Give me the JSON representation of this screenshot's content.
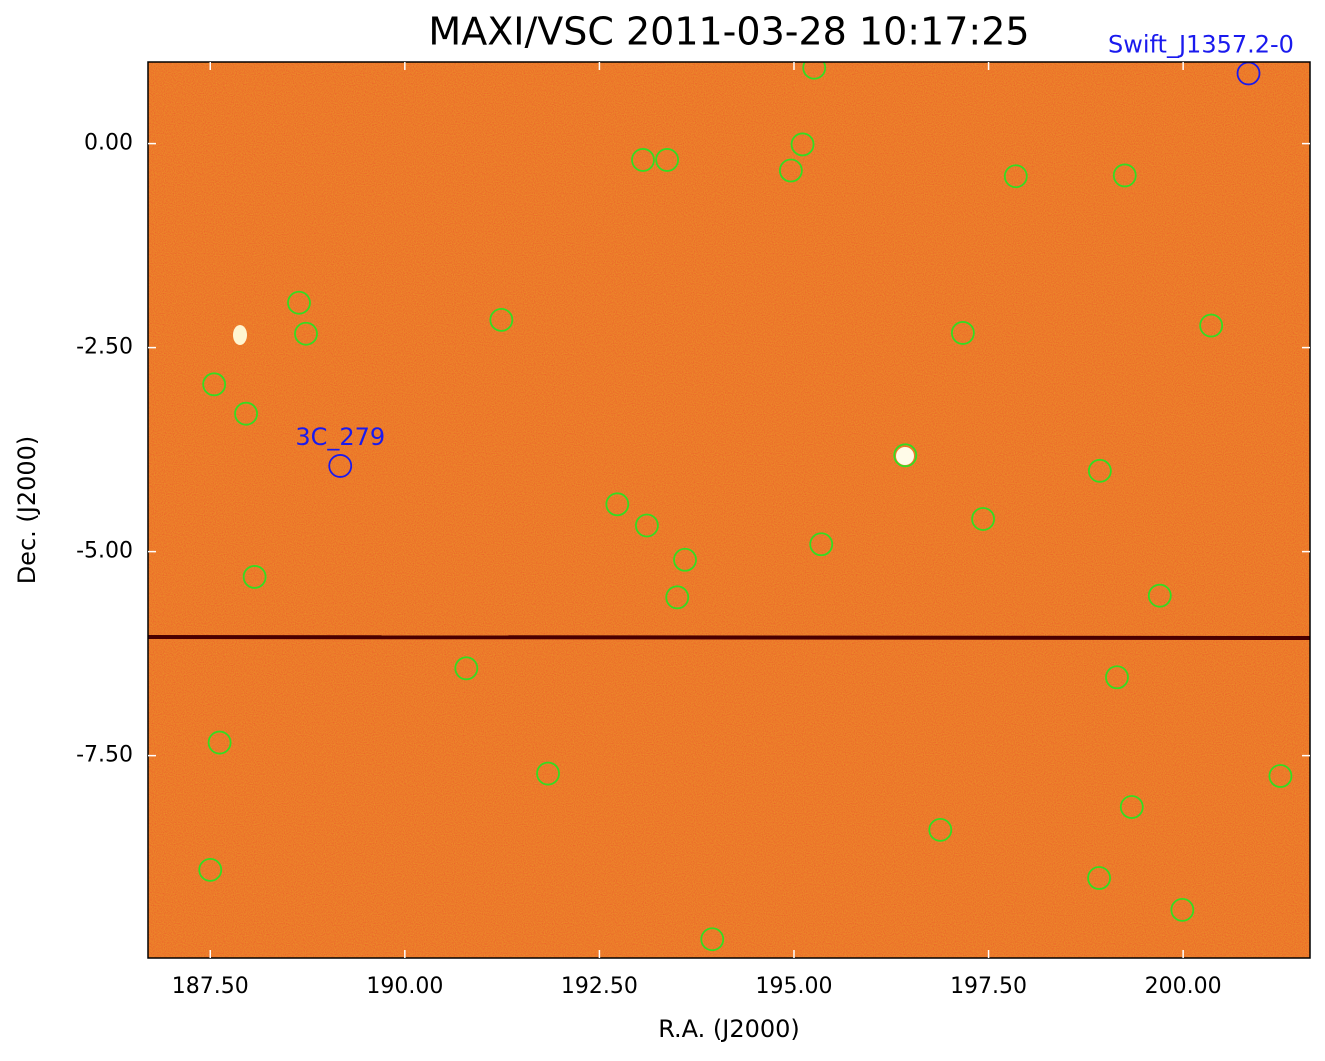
{
  "chart_data": {
    "type": "scatter",
    "title": "MAXI/VSC 2011-03-28 10:17:25",
    "xlabel": "R.A. (J2000)",
    "ylabel": "Dec. (J2000)",
    "xlim": [
      186.7,
      201.63
    ],
    "ylim": [
      -9.98,
      1.0
    ],
    "xticks": [
      {
        "value": 187.5,
        "label": "187.50"
      },
      {
        "value": 190,
        "label": "190.00"
      },
      {
        "value": 192.5,
        "label": "192.50"
      },
      {
        "value": 195,
        "label": "195.00"
      },
      {
        "value": 197.5,
        "label": "197.50"
      },
      {
        "value": 200,
        "label": "200.00"
      }
    ],
    "yticks": [
      {
        "value": 0,
        "label": "0.00"
      },
      {
        "value": -2.5,
        "label": "-2.50"
      },
      {
        "value": -5,
        "label": "-5.00"
      },
      {
        "value": -7.5,
        "label": "-7.50"
      }
    ],
    "series": [
      {
        "color": "#33dd22",
        "x": [
          195.26,
          195.11,
          193.06,
          193.37,
          194.96,
          197.85,
          199.25,
          188.64,
          188.73,
          191.24,
          197.17,
          200.36,
          187.55,
          187.96,
          196.43,
          198.93,
          192.73,
          193.11,
          197.43,
          195.35,
          193.6,
          188.07,
          193.5,
          199.7,
          190.79,
          199.15,
          187.62,
          191.84,
          201.25,
          199.34,
          196.88,
          187.5,
          198.92,
          199.99,
          193.95
        ],
        "y": [
          0.93,
          -0.01,
          -0.2,
          -0.2,
          -0.33,
          -0.4,
          -0.39,
          -1.95,
          -2.33,
          -2.16,
          -2.32,
          -2.23,
          -2.95,
          -3.31,
          -3.82,
          -4.01,
          -4.42,
          -4.68,
          -4.6,
          -4.91,
          -5.1,
          -5.31,
          -5.56,
          -5.54,
          -6.43,
          -6.54,
          -7.34,
          -7.72,
          -7.75,
          -8.13,
          -8.41,
          -8.9,
          -9.0,
          -9.39,
          -9.75
        ]
      }
    ],
    "annotations": [
      {
        "text": "3C_279",
        "x": 189.17,
        "y": -3.95,
        "color": "#1a1aee"
      },
      {
        "text": "Swift_J1357.2-0",
        "x": 200.84,
        "y": 0.86,
        "color": "#1a1aee"
      }
    ]
  }
}
